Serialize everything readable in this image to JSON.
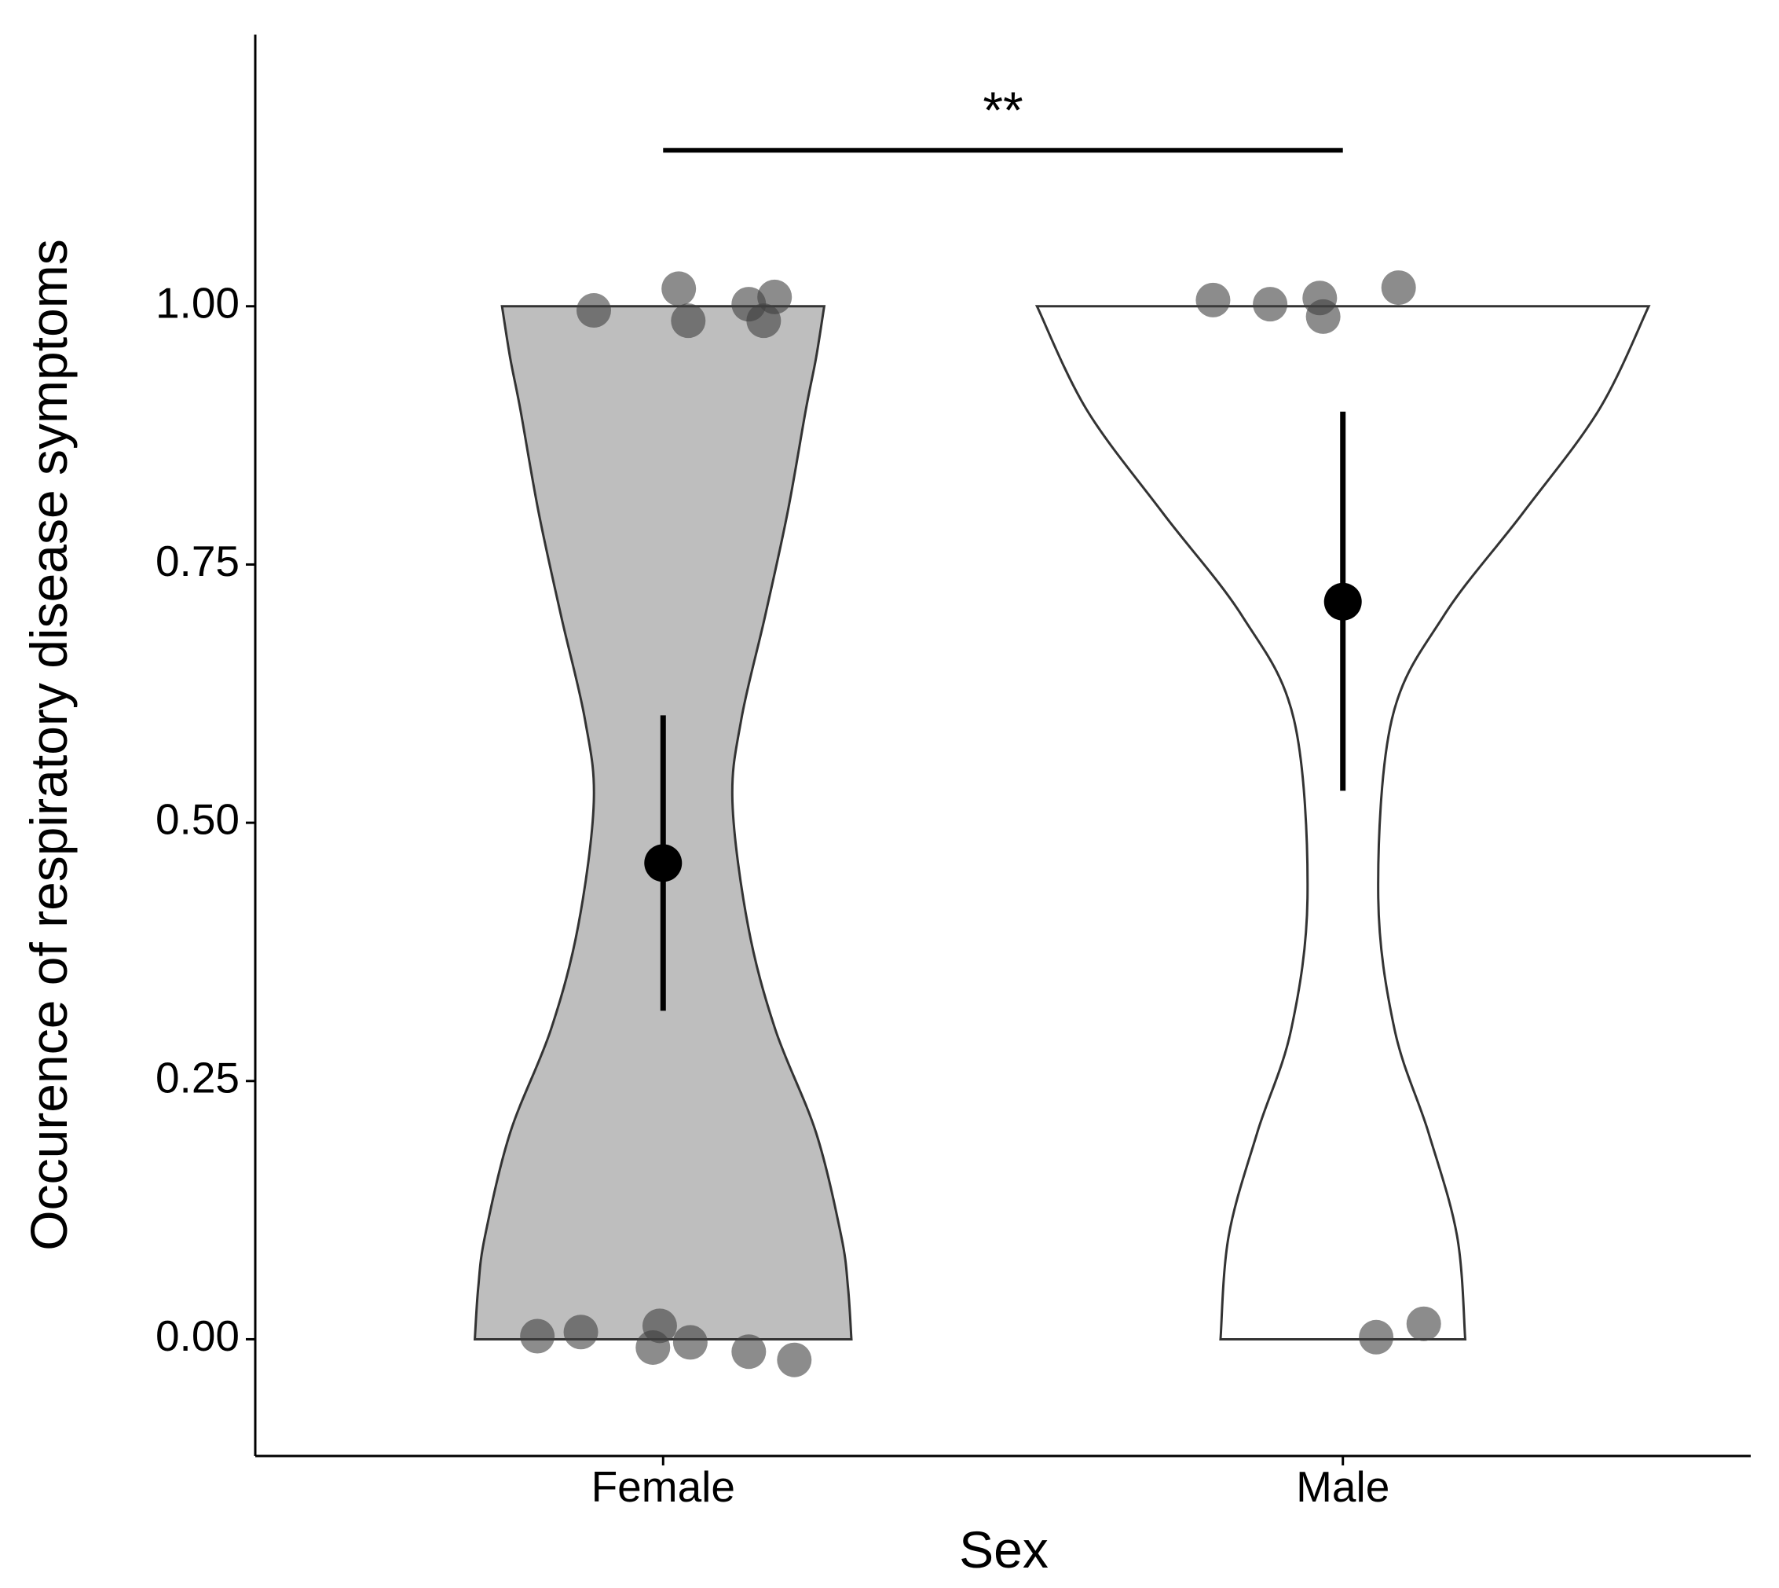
{
  "chart_data": {
    "type": "violin",
    "xlabel": "Sex",
    "ylabel": "Occurence of respiratory disease symptoms",
    "categories": [
      "Female",
      "Male"
    ],
    "xlim": [
      0.4,
      2.6
    ],
    "ylim": [
      -0.113,
      1.263
    ],
    "yticks": [
      {
        "value": 0,
        "label": "0.00"
      },
      {
        "value": 0.25,
        "label": "0.25"
      },
      {
        "value": 0.5,
        "label": "0.50"
      },
      {
        "value": 0.75,
        "label": "0.75"
      },
      {
        "value": 1,
        "label": "1.00"
      }
    ],
    "groups": [
      {
        "color": "#bebebe",
        "violin_y": [
          0,
          0.05,
          0.1,
          0.2,
          0.3,
          0.4,
          0.52,
          0.6,
          0.7,
          0.8,
          0.9,
          0.95,
          1.0
        ],
        "violin_halfwidth": [
          0.277,
          0.272,
          0.262,
          0.225,
          0.165,
          0.125,
          0.102,
          0.115,
          0.15,
          0.183,
          0.21,
          0.225,
          0.237
        ],
        "points_x": [
          0.898,
          1.023,
          1.037,
          1.126,
          1.164,
          1.148,
          0.815,
          0.879,
          0.995,
          0.985,
          1.04,
          1.126,
          1.193
        ],
        "points_y": [
          0.996,
          1.017,
          0.986,
          1.002,
          1.009,
          0.986,
          0.003,
          0.007,
          0.013,
          -0.008,
          -0.003,
          -0.012,
          -0.02
        ],
        "mean": 0.461,
        "error": [
          0.318,
          0.604
        ]
      },
      {
        "color": "#ffffff",
        "violin_y": [
          0,
          0.1,
          0.2,
          0.3,
          0.43,
          0.6,
          0.7,
          0.8,
          0.9,
          1.0
        ],
        "violin_halfwidth": [
          0.18,
          0.168,
          0.126,
          0.076,
          0.052,
          0.072,
          0.148,
          0.265,
          0.377,
          0.45
        ],
        "points_x": [
          1.809,
          1.893,
          1.966,
          1.971,
          2.082,
          2.049,
          2.119
        ],
        "points_y": [
          1.006,
          1.002,
          1.008,
          0.99,
          1.018,
          0.002,
          0.015
        ],
        "mean": 0.714,
        "error": [
          0.531,
          0.898
        ]
      }
    ],
    "annotation": {
      "text": "**",
      "y": 1.151,
      "x": [
        1,
        2
      ]
    }
  }
}
